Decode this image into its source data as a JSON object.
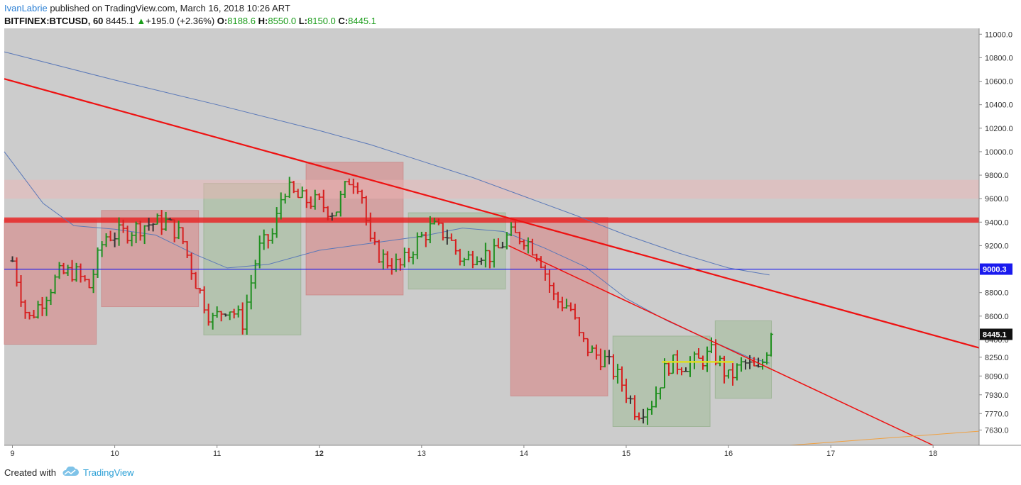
{
  "header": {
    "author": "IvanLabrie",
    "published_text": " published on TradingView.com, March 16, 2018 10:26 ART",
    "symbol": "BITFINEX:BTCUSD, 60",
    "last": "8445.1",
    "change_arrow": "▲",
    "change": "+195.0 (+2.36%)",
    "o_label": "O:",
    "o_value": "8188.6",
    "h_label": "H:",
    "h_value": "8550.0",
    "l_label": "L:",
    "l_value": "8150.0",
    "c_label": "C:",
    "c_value": "8445.1"
  },
  "footer": {
    "created_with": "Created with",
    "brand": "TradingView"
  },
  "colors": {
    "background": "#cccccc",
    "bull": "#1f8f1f",
    "bear": "#d61f1f",
    "neutral": "#333333",
    "trendline": "#ee1111",
    "ma": "#5a78b8",
    "level": "#1a1aee",
    "red_box": "rgba(220,110,110,0.45)",
    "green_box": "rgba(150,185,140,0.45)"
  },
  "chart_data": {
    "type": "ohlc",
    "ylim": [
      7500,
      11050
    ],
    "xlim": [
      8.92,
      18.45
    ],
    "x_ticks": [
      {
        "x": 9,
        "label": "9",
        "bold": false
      },
      {
        "x": 10,
        "label": "10",
        "bold": false
      },
      {
        "x": 11,
        "label": "11",
        "bold": false
      },
      {
        "x": 12,
        "label": "12",
        "bold": true
      },
      {
        "x": 13,
        "label": "13",
        "bold": false
      },
      {
        "x": 14,
        "label": "14",
        "bold": false
      },
      {
        "x": 15,
        "label": "15",
        "bold": false
      },
      {
        "x": 16,
        "label": "16",
        "bold": false
      },
      {
        "x": 17,
        "label": "17",
        "bold": false
      },
      {
        "x": 18,
        "label": "18",
        "bold": false
      }
    ],
    "y_ticks": [
      {
        "v": 11000,
        "label": "11000.0"
      },
      {
        "v": 10800,
        "label": "10800.0"
      },
      {
        "v": 10600,
        "label": "10600.0"
      },
      {
        "v": 10400,
        "label": "10400.0"
      },
      {
        "v": 10200,
        "label": "10200.0"
      },
      {
        "v": 10000,
        "label": "10000.0"
      },
      {
        "v": 9800,
        "label": "9800.0"
      },
      {
        "v": 9600,
        "label": "9600.0"
      },
      {
        "v": 9400,
        "label": "9400.0"
      },
      {
        "v": 9200,
        "label": "9200.0"
      },
      {
        "v": 9000,
        "label": "9000.0"
      },
      {
        "v": 8800,
        "label": "8800.0"
      },
      {
        "v": 8600,
        "label": "8600.0"
      },
      {
        "v": 8400,
        "label": "8400.0"
      },
      {
        "v": 8250,
        "label": "8250.0"
      },
      {
        "v": 8090,
        "label": "8090.0"
      },
      {
        "v": 7930,
        "label": "7930.0"
      },
      {
        "v": 7770,
        "label": "7770.0"
      },
      {
        "v": 7630,
        "label": "7630.0"
      }
    ],
    "price_labels": [
      {
        "v": 9000,
        "label": "9000.3",
        "bg": "#1a1aee"
      },
      {
        "v": 8445,
        "label": "8445.1",
        "bg": "#111111"
      }
    ],
    "zones": [
      {
        "kind": "red",
        "x0": 8.92,
        "x1": 9.82,
        "y0": 8360,
        "y1": 9420
      },
      {
        "kind": "red",
        "x0": 9.87,
        "x1": 10.82,
        "y0": 8680,
        "y1": 9500
      },
      {
        "kind": "green",
        "x0": 10.87,
        "x1": 11.82,
        "y0": 8440,
        "y1": 9730
      },
      {
        "kind": "red",
        "x0": 11.87,
        "x1": 12.82,
        "y0": 8780,
        "y1": 9910
      },
      {
        "kind": "green",
        "x0": 12.87,
        "x1": 13.82,
        "y0": 8830,
        "y1": 9480
      },
      {
        "kind": "red",
        "x0": 13.87,
        "x1": 14.82,
        "y0": 7920,
        "y1": 9440
      },
      {
        "kind": "green",
        "x0": 14.87,
        "x1": 15.82,
        "y0": 7660,
        "y1": 8430
      },
      {
        "kind": "green",
        "x0": 15.87,
        "x1": 16.42,
        "y0": 7900,
        "y1": 8560
      }
    ],
    "bands": [
      {
        "y0": 9600,
        "y1": 9760,
        "color": "rgba(240,180,180,0.45)"
      },
      {
        "y0": 9395,
        "y1": 9440,
        "color": "rgba(230,40,40,0.85)"
      }
    ],
    "level": 9000,
    "trendlines": [
      {
        "x0": 8.92,
        "y0": 10620,
        "x1": 18.45,
        "y1": 8330,
        "width": 2.2
      },
      {
        "x0": 13.85,
        "y0": 9200,
        "x1": 18.0,
        "y1": 7500,
        "width": 1.5
      },
      {
        "x0": 15.35,
        "y0": 8210,
        "x1": 16.05,
        "y1": 8210,
        "width": 2.5,
        "color": "#dddd22"
      },
      {
        "x0": 16.6,
        "y0": 7500,
        "x1": 18.45,
        "y1": 7620,
        "width": 1,
        "color": "#f0a040"
      }
    ],
    "ma_slow": [
      [
        8.92,
        10850
      ],
      [
        10.0,
        10610
      ],
      [
        11.0,
        10400
      ],
      [
        12.0,
        10180
      ],
      [
        12.5,
        10060
      ],
      [
        13.0,
        9920
      ],
      [
        13.5,
        9780
      ],
      [
        14.0,
        9620
      ],
      [
        14.5,
        9460
      ],
      [
        15.0,
        9290
      ],
      [
        15.5,
        9140
      ],
      [
        16.0,
        9010
      ],
      [
        16.4,
        8950
      ]
    ],
    "ma_fast": [
      [
        8.92,
        10000
      ],
      [
        9.3,
        9560
      ],
      [
        9.6,
        9370
      ],
      [
        10.0,
        9340
      ],
      [
        10.4,
        9290
      ],
      [
        10.8,
        9120
      ],
      [
        11.1,
        9010
      ],
      [
        11.5,
        9040
      ],
      [
        12.0,
        9160
      ],
      [
        12.5,
        9220
      ],
      [
        13.0,
        9280
      ],
      [
        13.4,
        9350
      ],
      [
        13.8,
        9320
      ],
      [
        14.2,
        9180
      ],
      [
        14.6,
        9020
      ],
      [
        15.0,
        8750
      ],
      [
        15.4,
        8560
      ],
      [
        15.8,
        8400
      ],
      [
        16.2,
        8250
      ],
      [
        16.4,
        8200
      ]
    ],
    "anchors": [
      [
        9.0,
        9070
      ],
      [
        9.15,
        8560
      ],
      [
        9.3,
        8750
      ],
      [
        9.45,
        8950
      ],
      [
        9.6,
        8980
      ],
      [
        9.75,
        8850
      ],
      [
        9.9,
        9280
      ],
      [
        10.1,
        9310
      ],
      [
        10.3,
        9380
      ],
      [
        10.5,
        9400
      ],
      [
        10.65,
        9280
      ],
      [
        10.8,
        8870
      ],
      [
        10.95,
        8560
      ],
      [
        11.1,
        8690
      ],
      [
        11.25,
        8550
      ],
      [
        11.4,
        9160
      ],
      [
        11.55,
        9300
      ],
      [
        11.65,
        9700
      ],
      [
        11.8,
        9600
      ],
      [
        12.0,
        9560
      ],
      [
        12.15,
        9480
      ],
      [
        12.3,
        9780
      ],
      [
        12.4,
        9720
      ],
      [
        12.5,
        9200
      ],
      [
        12.65,
        9070
      ],
      [
        12.8,
        9020
      ],
      [
        12.95,
        9230
      ],
      [
        13.1,
        9360
      ],
      [
        13.25,
        9290
      ],
      [
        13.4,
        9060
      ],
      [
        13.55,
        9150
      ],
      [
        13.7,
        9110
      ],
      [
        13.85,
        9290
      ],
      [
        14.0,
        9270
      ],
      [
        14.15,
        9120
      ],
      [
        14.3,
        8740
      ],
      [
        14.45,
        8680
      ],
      [
        14.55,
        8400
      ],
      [
        14.65,
        8300
      ],
      [
        14.8,
        8220
      ],
      [
        14.95,
        8040
      ],
      [
        15.1,
        7780
      ],
      [
        15.25,
        7870
      ],
      [
        15.4,
        8190
      ],
      [
        15.55,
        8190
      ],
      [
        15.7,
        8210
      ],
      [
        15.85,
        8290
      ],
      [
        16.0,
        8070
      ],
      [
        16.15,
        8200
      ],
      [
        16.3,
        8120
      ],
      [
        16.42,
        8445
      ]
    ]
  }
}
